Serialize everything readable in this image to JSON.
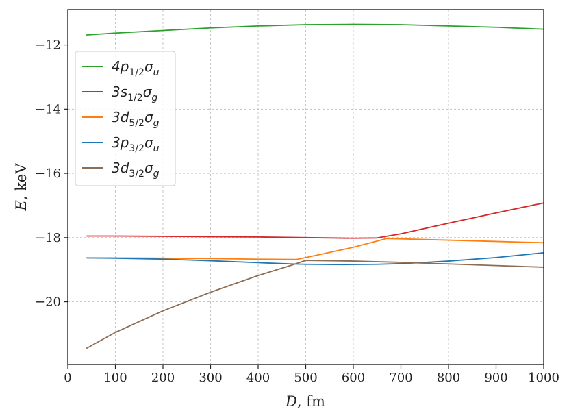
{
  "chart_data": {
    "type": "line",
    "xlabel": {
      "var": "D",
      "unit": "fm"
    },
    "ylabel": {
      "var": "E",
      "unit": "keV"
    },
    "xlim": [
      0,
      1000
    ],
    "ylim": [
      -21.95,
      -10.9
    ],
    "xticks": [
      0,
      100,
      200,
      300,
      400,
      500,
      600,
      700,
      800,
      900,
      1000
    ],
    "yticks": [
      -12,
      -14,
      -16,
      -18,
      -20
    ],
    "ytick_labels": [
      "−12",
      "−14",
      "−16",
      "−18",
      "−20"
    ],
    "grid": true,
    "legend_position": "upper-left",
    "series": [
      {
        "name": "4p1/2σu",
        "label": {
          "base": "4p",
          "sub": "1/2",
          "sym": "σ",
          "sym_sub": "u"
        },
        "color": "#2ca02c",
        "x": [
          40,
          100,
          200,
          300,
          400,
          500,
          600,
          700,
          800,
          900,
          1000
        ],
        "y": [
          -11.69,
          -11.63,
          -11.55,
          -11.47,
          -11.41,
          -11.37,
          -11.36,
          -11.37,
          -11.41,
          -11.45,
          -11.51
        ]
      },
      {
        "name": "3s1/2σg",
        "label": {
          "base": "3s",
          "sub": "1/2",
          "sym": "σ",
          "sym_sub": "g"
        },
        "color": "#d62728",
        "x": [
          40,
          100,
          200,
          300,
          400,
          500,
          600,
          650,
          700,
          800,
          900,
          1000
        ],
        "y": [
          -17.95,
          -17.95,
          -17.96,
          -17.97,
          -17.98,
          -18.0,
          -18.02,
          -18.01,
          -17.88,
          -17.55,
          -17.23,
          -16.92
        ]
      },
      {
        "name": "3d5/2σg",
        "label": {
          "base": "3d",
          "sub": "5/2",
          "sym": "σ",
          "sym_sub": "g"
        },
        "color": "#ff7f0e",
        "x": [
          40,
          100,
          200,
          300,
          400,
          480,
          500,
          600,
          670,
          700,
          800,
          900,
          1000
        ],
        "y": [
          -18.63,
          -18.63,
          -18.64,
          -18.65,
          -18.67,
          -18.68,
          -18.62,
          -18.3,
          -18.03,
          -18.04,
          -18.08,
          -18.12,
          -18.16
        ]
      },
      {
        "name": "3p3/2σu",
        "label": {
          "base": "3p",
          "sub": "3/2",
          "sym": "σ",
          "sym_sub": "u"
        },
        "color": "#1f77b4",
        "x": [
          40,
          100,
          200,
          300,
          400,
          470,
          500,
          580,
          650,
          700,
          740,
          800,
          900,
          1000
        ],
        "y": [
          -18.63,
          -18.64,
          -18.67,
          -18.72,
          -18.78,
          -18.82,
          -18.83,
          -18.84,
          -18.83,
          -18.81,
          -18.78,
          -18.73,
          -18.62,
          -18.47
        ]
      },
      {
        "name": "3d3/2σg",
        "label": {
          "base": "3d",
          "sub": "3/2",
          "sym": "σ",
          "sym_sub": "g"
        },
        "color": "#8c6d55",
        "x": [
          40,
          100,
          200,
          300,
          400,
          470,
          500,
          600,
          700,
          800,
          900,
          1000
        ],
        "y": [
          -21.44,
          -20.95,
          -20.28,
          -19.7,
          -19.18,
          -18.86,
          -18.71,
          -18.73,
          -18.77,
          -18.82,
          -18.87,
          -18.92
        ]
      }
    ]
  }
}
